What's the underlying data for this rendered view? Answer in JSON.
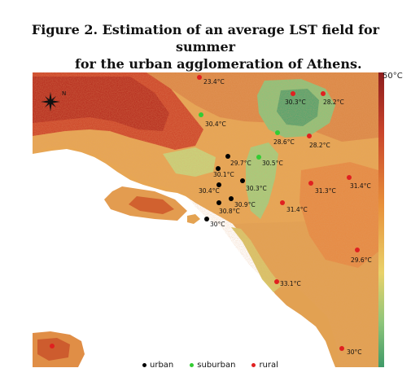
{
  "title": {
    "line1": "Figure 2. Estimation of an average LST field for summer",
    "line2": "for the urban agglomeration of Athens."
  },
  "colorbar": {
    "max_label": "50°C"
  },
  "legend": {
    "urban": "urban",
    "suburban": "suburban",
    "rural": "rural"
  },
  "colors": {
    "urban": "#000000",
    "suburban": "#33cc33",
    "rural": "#e02020",
    "sea": "#ffffff"
  },
  "north_arrow_icon": "compass-rose-icon",
  "stations": [
    {
      "label": "23.4°C",
      "type": "rural"
    },
    {
      "label": "30.3°C",
      "type": "rural"
    },
    {
      "label": "28.2°C",
      "type": "rural"
    },
    {
      "label": "30.4°C",
      "type": "suburban"
    },
    {
      "label": "28.6°C",
      "type": "suburban"
    },
    {
      "label": "28.2°C",
      "type": "rural"
    },
    {
      "label": "29.7°C",
      "type": "urban"
    },
    {
      "label": "30.5°C",
      "type": "suburban"
    },
    {
      "label": "30.1°C",
      "type": "urban"
    },
    {
      "label": "30.4°C",
      "type": "urban"
    },
    {
      "label": "30.3°C",
      "type": "urban"
    },
    {
      "label": "30.9°C",
      "type": "urban"
    },
    {
      "label": "30.8°C",
      "type": "urban"
    },
    {
      "label": "30°C",
      "type": "urban"
    },
    {
      "label": "31.4°C",
      "type": "rural"
    },
    {
      "label": "31.3°C",
      "type": "rural"
    },
    {
      "label": "31.4°C",
      "type": "rural"
    },
    {
      "label": "29.6°C",
      "type": "rural"
    },
    {
      "label": "33.1°C",
      "type": "rural"
    },
    {
      "label": "30°C",
      "type": "rural"
    },
    {
      "label": "",
      "type": "rural"
    }
  ]
}
